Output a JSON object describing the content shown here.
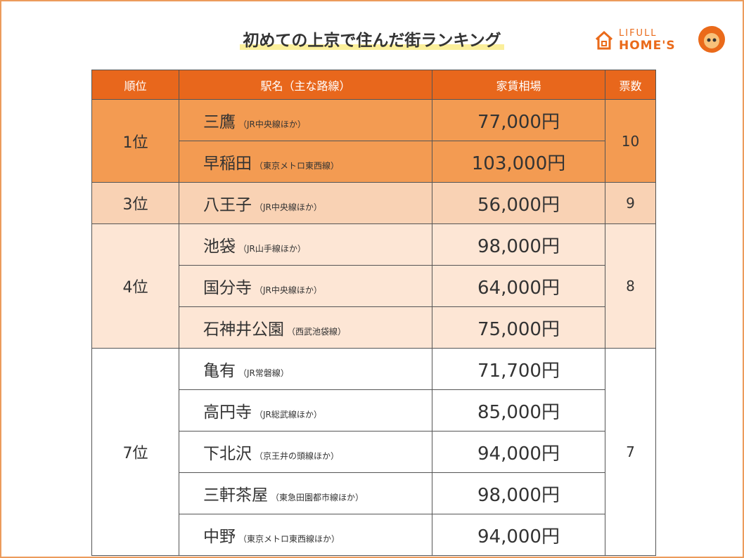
{
  "header": {
    "title": "初めての上京で住んだ街ランキング",
    "logo_top": "LIFULL",
    "logo_bottom": "HOME'S"
  },
  "table": {
    "columns": [
      "順位",
      "駅名（主な路線）",
      "家賃相場",
      "票数"
    ],
    "groups": [
      {
        "rank": "1位",
        "votes": "10",
        "rows": [
          {
            "station": "三鷹",
            "line": "（JR中央線ほか）",
            "rent": "77,000円"
          },
          {
            "station": "早稲田",
            "line": "（東京メトロ東西線）",
            "rent": "103,000円"
          }
        ]
      },
      {
        "rank": "3位",
        "votes": "9",
        "rows": [
          {
            "station": "八王子",
            "line": "（JR中央線ほか）",
            "rent": "56,000円"
          }
        ]
      },
      {
        "rank": "4位",
        "votes": "8",
        "rows": [
          {
            "station": "池袋",
            "line": "（JR山手線ほか）",
            "rent": "98,000円"
          },
          {
            "station": "国分寺",
            "line": "（JR中央線ほか）",
            "rent": "64,000円"
          },
          {
            "station": "石神井公園",
            "line": "（西武池袋線）",
            "rent": "75,000円"
          }
        ]
      },
      {
        "rank": "7位",
        "votes": "7",
        "rows": [
          {
            "station": "亀有",
            "line": "（JR常磐線）",
            "rent": "71,700円"
          },
          {
            "station": "高円寺",
            "line": "（JR総武線ほか）",
            "rent": "85,000円"
          },
          {
            "station": "下北沢",
            "line": "（京王井の頭線ほか）",
            "rent": "94,000円"
          },
          {
            "station": "三軒茶屋",
            "line": "（東急田園都市線ほか）",
            "rent": "98,000円"
          },
          {
            "station": "中野",
            "line": "（東京メトロ東西線ほか）",
            "rent": "94,000円"
          }
        ]
      }
    ]
  }
}
